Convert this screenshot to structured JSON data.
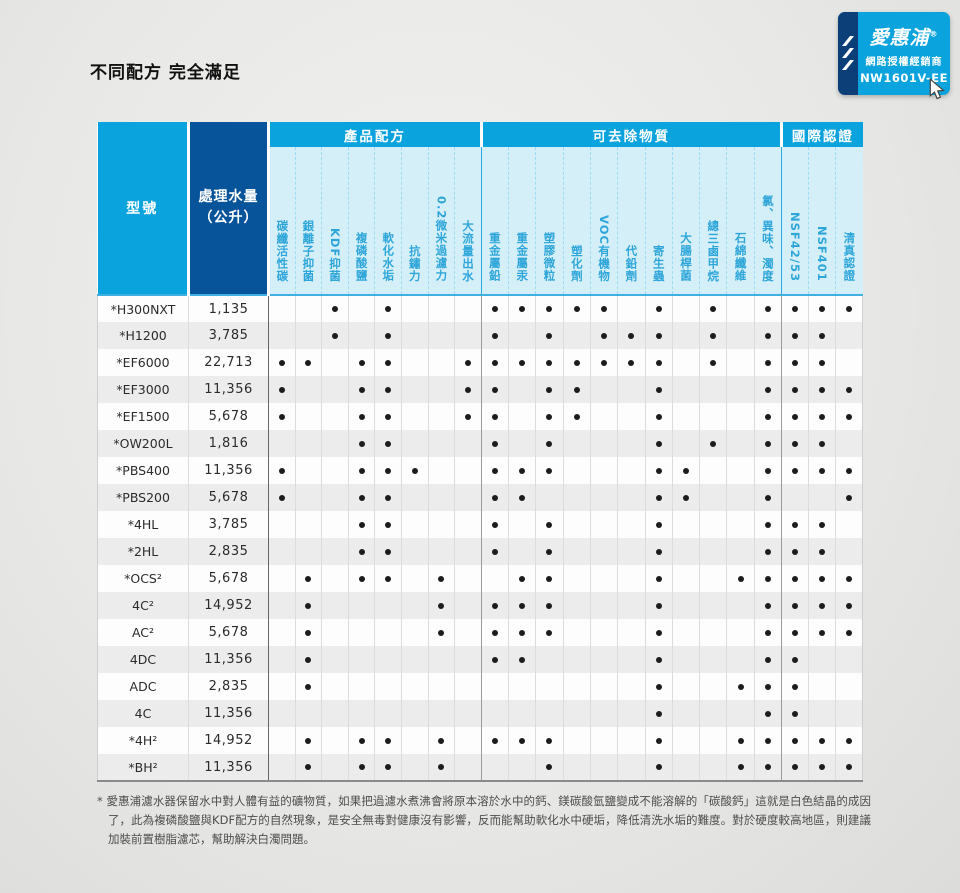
{
  "page": {
    "title": "不同配方 完全滿足"
  },
  "badge": {
    "brand": "愛惠浦",
    "registered_mark": "®",
    "dealer_label": "網路授權經銷商",
    "dealer_code": "NW1601V-EE"
  },
  "table": {
    "header": {
      "model": "型號",
      "volume_line1": "處理水量",
      "volume_line2": "（公升）"
    },
    "sections": [
      {
        "label": "產品配方",
        "columns": [
          "碳纖活性碳",
          "銀離子抑菌",
          "KDF抑菌",
          "複磷酸鹽",
          "軟化水垢",
          "抗鏽力",
          "0.2微米過濾力",
          "大流量出水"
        ]
      },
      {
        "label": "可去除物質",
        "columns": [
          "重金屬鉛",
          "重金屬汞",
          "塑膠微粒",
          "塑化劑",
          "VOC有機物",
          "代鉛劑",
          "寄生蟲",
          "大腸桿菌",
          "總三鹵甲烷",
          "石綿纖維",
          "氯、異味、濁度"
        ]
      },
      {
        "label": "國際認證",
        "columns": [
          "NSF42/53",
          "NSF401",
          "清真認證"
        ]
      }
    ],
    "rows": [
      {
        "model": "*H300NXT",
        "volume": "1,135",
        "dots": [
          3,
          5,
          9,
          10,
          11,
          12,
          13,
          15,
          17,
          19,
          20,
          21,
          22
        ]
      },
      {
        "model": "*H1200",
        "volume": "3,785",
        "dots": [
          3,
          5,
          9,
          11,
          13,
          14,
          15,
          17,
          19,
          20,
          21
        ]
      },
      {
        "model": "*EF6000",
        "volume": "22,713",
        "dots": [
          1,
          2,
          4,
          5,
          8,
          9,
          10,
          11,
          12,
          13,
          14,
          15,
          17,
          19,
          20,
          21
        ]
      },
      {
        "model": "*EF3000",
        "volume": "11,356",
        "dots": [
          1,
          4,
          5,
          8,
          9,
          11,
          12,
          15,
          19,
          20,
          21,
          22
        ]
      },
      {
        "model": "*EF1500",
        "volume": "5,678",
        "dots": [
          1,
          4,
          5,
          8,
          9,
          11,
          12,
          15,
          19,
          20,
          21,
          22
        ]
      },
      {
        "model": "*OW200L",
        "volume": "1,816",
        "dots": [
          4,
          5,
          9,
          11,
          15,
          17,
          19,
          20,
          21
        ]
      },
      {
        "model": "*PBS400",
        "volume": "11,356",
        "dots": [
          1,
          4,
          5,
          6,
          9,
          10,
          11,
          15,
          16,
          19,
          20,
          21,
          22
        ]
      },
      {
        "model": "*PBS200",
        "volume": "5,678",
        "dots": [
          1,
          4,
          5,
          9,
          10,
          15,
          16,
          19,
          22
        ]
      },
      {
        "model": "*4HL",
        "volume": "3,785",
        "dots": [
          4,
          5,
          9,
          11,
          15,
          19,
          20,
          21
        ]
      },
      {
        "model": "*2HL",
        "volume": "2,835",
        "dots": [
          4,
          5,
          9,
          11,
          15,
          19,
          20,
          21
        ]
      },
      {
        "model": "*OCS²",
        "volume": "5,678",
        "dots": [
          2,
          4,
          5,
          7,
          10,
          11,
          15,
          18,
          19,
          20,
          21,
          22
        ]
      },
      {
        "model": "4C²",
        "volume": "14,952",
        "dots": [
          2,
          7,
          9,
          10,
          11,
          15,
          19,
          20,
          21,
          22
        ]
      },
      {
        "model": "AC²",
        "volume": "5,678",
        "dots": [
          2,
          7,
          9,
          10,
          11,
          15,
          19,
          20,
          21,
          22
        ]
      },
      {
        "model": "4DC",
        "volume": "11,356",
        "dots": [
          2,
          9,
          10,
          15,
          19,
          20
        ]
      },
      {
        "model": "ADC",
        "volume": "2,835",
        "dots": [
          2,
          15,
          18,
          19,
          20
        ]
      },
      {
        "model": "4C",
        "volume": "11,356",
        "dots": [
          15,
          19,
          20
        ]
      },
      {
        "model": "*4H²",
        "volume": "14,952",
        "dots": [
          2,
          4,
          5,
          7,
          9,
          10,
          11,
          15,
          18,
          19,
          20,
          21,
          22
        ]
      },
      {
        "model": "*BH²",
        "volume": "11,356",
        "dots": [
          2,
          4,
          5,
          7,
          11,
          15,
          18,
          19,
          20,
          21,
          22
        ]
      }
    ]
  },
  "footnote": "* 愛惠浦濾水器保留水中對人體有益的礦物質，如果把過濾水煮沸會將原本溶於水中的鈣、鎂碳酸氫鹽變成不能溶解的「碳酸鈣」這就是白色結晶的成因了，此為複磷酸鹽與KDF配方的自然現象，是安全無毒對健康沒有影響，反而能幫助軟化水中硬垢，降低清洗水垢的難度。對於硬度較高地區，則建議加裝前置樹脂濾芯，幫助解決白濁問題。",
  "colors": {
    "accent": "#0ba3de",
    "dark_blue": "#07549b",
    "navy": "#0c3e78",
    "light_blue": "#d5eff9",
    "label_text": "#2fa6d9",
    "stripe": "#ececec",
    "dot": "#1c1c1c"
  },
  "column_widths": {
    "model": 91,
    "volume": 80,
    "product": 26.6,
    "removable": 27.3,
    "cert": 27
  }
}
